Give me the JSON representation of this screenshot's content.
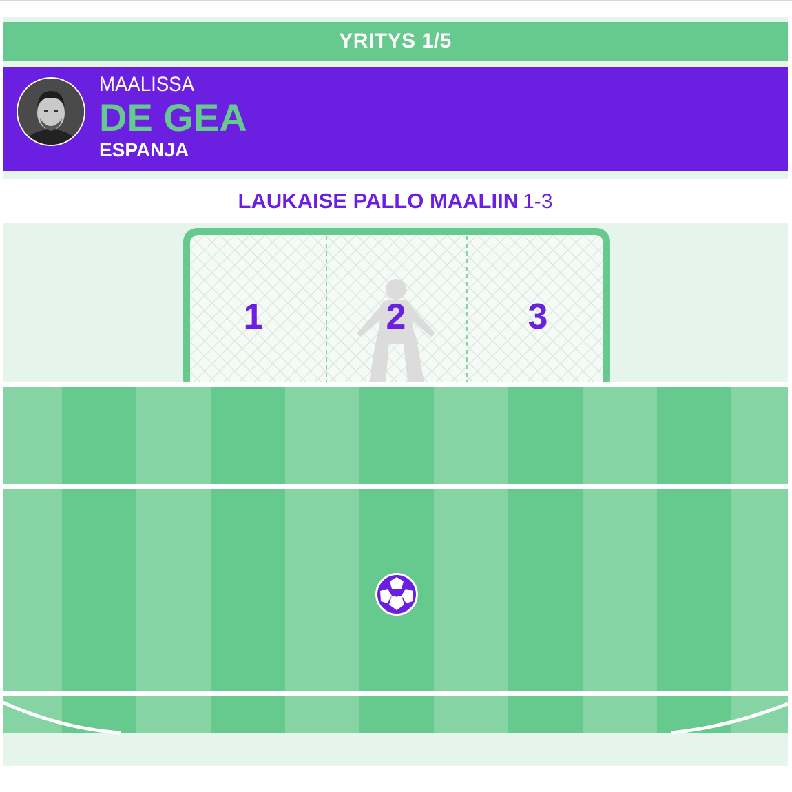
{
  "attempt": {
    "label": "YRITYS 1/5"
  },
  "keeper": {
    "caption": "MAALISSA",
    "name": "DE GEA",
    "country": "ESPANJA"
  },
  "instruction": {
    "main": "LAUKAISE PALLO MAALIIN",
    "range": "1-3"
  },
  "goal_zones": [
    {
      "label": "1"
    },
    {
      "label": "2"
    },
    {
      "label": "3"
    }
  ],
  "colors": {
    "accent_purple": "#6b1fe0",
    "accent_green": "#66c98d",
    "pitch_light": "#86d4a3",
    "pitch_dark": "#66c98d",
    "background": "#e6f5ec"
  },
  "icons": {
    "ball": "soccer-ball-icon",
    "keeper": "goalkeeper-silhouette-icon"
  }
}
